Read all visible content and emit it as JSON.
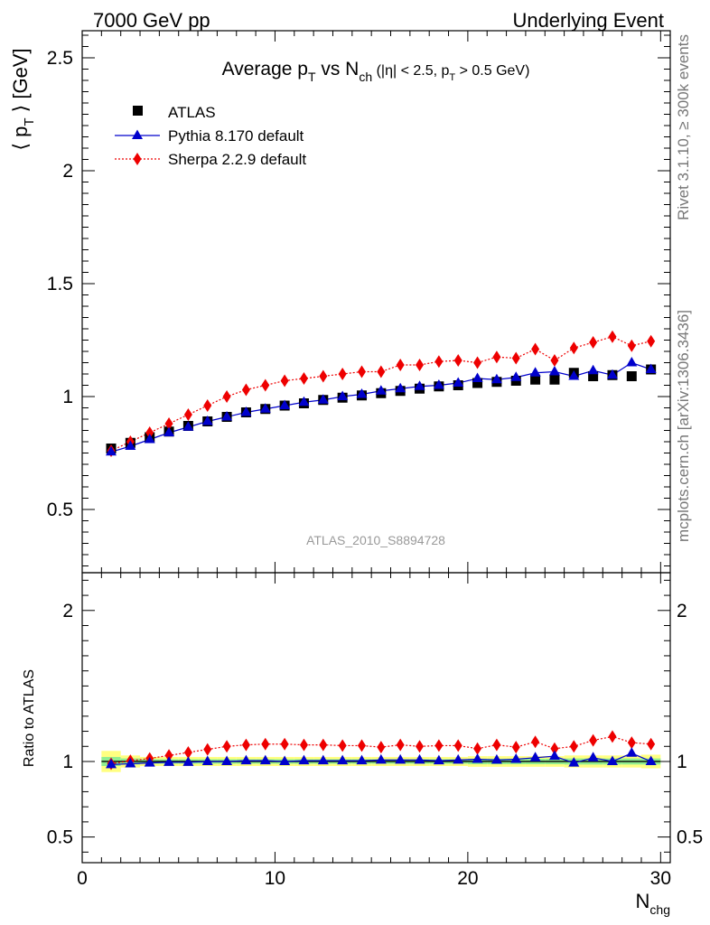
{
  "header": {
    "left": "7000 GeV pp",
    "right": "Underlying Event"
  },
  "side": {
    "rivet": "Rivet 3.1.10, ≥ 300k events",
    "mcplots": "mcplots.cern.ch [arXiv:1306.3436]"
  },
  "watermark": "ATLAS_2010_S8894728",
  "main_title": {
    "pre": "Average p",
    "pre_sub": "T",
    "mid": " vs N",
    "mid_sub": "ch",
    "cut_a": " (|η| < 2.5, p",
    "cut_sub": "T",
    "cut_b": " > 0.5 GeV)"
  },
  "ylabel_main": {
    "open": "⟨ p",
    "sub": "T",
    "close": " ⟩ [GeV]"
  },
  "ylabel_ratio": "Ratio to ATLAS",
  "xlabel": {
    "base": "N",
    "sub": "chg"
  },
  "legend": [
    {
      "label": "ATLAS",
      "color": "#000000",
      "marker": "square"
    },
    {
      "label": "Pythia 8.170 default",
      "color": "#0000cc",
      "marker": "triangle"
    },
    {
      "label": "Sherpa 2.2.9 default",
      "color": "#ee0000",
      "marker": "diamond"
    }
  ],
  "chart_data": {
    "type": "scatter",
    "x": [
      1.5,
      2.5,
      3.5,
      4.5,
      5.5,
      6.5,
      7.5,
      8.5,
      9.5,
      10.5,
      11.5,
      12.5,
      13.5,
      14.5,
      15.5,
      16.5,
      17.5,
      18.5,
      19.5,
      20.5,
      21.5,
      22.5,
      23.5,
      24.5,
      25.5,
      26.5,
      27.5,
      28.5,
      29.5
    ],
    "xlim": [
      0,
      30.5
    ],
    "xticks": [
      0,
      10,
      20,
      30
    ],
    "main": {
      "ylim": [
        0.22,
        2.62
      ],
      "yticks": [
        0.5,
        1,
        1.5,
        2,
        2.5
      ],
      "ytick_labels": [
        "0.5",
        "1",
        "1.5",
        "2",
        "2.5"
      ]
    },
    "ratio": {
      "ylim": [
        0.33,
        2.25
      ],
      "yticks": [
        0.5,
        1,
        2
      ],
      "ytick_labels": [
        "0.5",
        "1",
        "2"
      ],
      "band_inner": [
        0.03,
        0.02,
        0.015,
        0.015,
        0.015,
        0.015,
        0.015,
        0.015,
        0.015,
        0.015,
        0.015,
        0.015,
        0.015,
        0.015,
        0.015,
        0.015,
        0.015,
        0.015,
        0.015,
        0.018,
        0.018,
        0.018,
        0.018,
        0.018,
        0.02,
        0.02,
        0.02,
        0.02,
        0.02
      ],
      "band_outer": [
        0.07,
        0.04,
        0.03,
        0.03,
        0.03,
        0.03,
        0.03,
        0.03,
        0.03,
        0.03,
        0.03,
        0.03,
        0.03,
        0.03,
        0.03,
        0.03,
        0.03,
        0.03,
        0.03,
        0.035,
        0.035,
        0.035,
        0.035,
        0.035,
        0.04,
        0.04,
        0.04,
        0.04,
        0.045
      ]
    },
    "series": [
      {
        "name": "ATLAS",
        "color": "#000000",
        "marker": "square",
        "values": [
          0.77,
          0.795,
          0.82,
          0.845,
          0.87,
          0.89,
          0.91,
          0.93,
          0.945,
          0.96,
          0.97,
          0.985,
          0.995,
          1.005,
          1.015,
          1.025,
          1.035,
          1.045,
          1.05,
          1.06,
          1.065,
          1.07,
          1.075,
          1.075,
          1.105,
          1.09,
          1.095,
          1.09,
          1.12
        ],
        "errors": [
          0.01,
          0.01,
          0.01,
          0.01,
          0.01,
          0.01,
          0.01,
          0.01,
          0.01,
          0.01,
          0.01,
          0.01,
          0.01,
          0.01,
          0.01,
          0.01,
          0.01,
          0.01,
          0.01,
          0.01,
          0.01,
          0.01,
          0.01,
          0.01,
          0.01,
          0.01,
          0.01,
          0.01,
          0.01
        ]
      },
      {
        "name": "Pythia 8.170 default",
        "color": "#0000cc",
        "marker": "triangle",
        "values": [
          0.755,
          0.78,
          0.81,
          0.84,
          0.865,
          0.89,
          0.91,
          0.93,
          0.945,
          0.96,
          0.975,
          0.985,
          1.0,
          1.01,
          1.025,
          1.035,
          1.045,
          1.05,
          1.06,
          1.08,
          1.075,
          1.085,
          1.105,
          1.11,
          1.09,
          1.115,
          1.095,
          1.15,
          1.12
        ],
        "errors": [
          0.005,
          0.005,
          0.005,
          0.005,
          0.005,
          0.005,
          0.005,
          0.005,
          0.005,
          0.005,
          0.005,
          0.005,
          0.005,
          0.005,
          0.006,
          0.006,
          0.006,
          0.006,
          0.007,
          0.007,
          0.008,
          0.008,
          0.009,
          0.01,
          0.01,
          0.011,
          0.012,
          0.013,
          0.014
        ],
        "ratio": [
          0.98,
          0.985,
          0.99,
          0.995,
          0.995,
          1.0,
          1.0,
          1.005,
          1.005,
          1.0,
          1.005,
          1.005,
          1.005,
          1.005,
          1.01,
          1.01,
          1.01,
          1.005,
          1.01,
          1.015,
          1.01,
          1.015,
          1.025,
          1.035,
          0.99,
          1.025,
          1.0,
          1.055,
          1.0
        ]
      },
      {
        "name": "Sherpa 2.2.9 default",
        "color": "#ee0000",
        "marker": "diamond",
        "values": [
          0.76,
          0.8,
          0.84,
          0.88,
          0.92,
          0.96,
          1.0,
          1.03,
          1.05,
          1.07,
          1.08,
          1.09,
          1.1,
          1.11,
          1.11,
          1.14,
          1.14,
          1.155,
          1.16,
          1.15,
          1.175,
          1.17,
          1.21,
          1.16,
          1.215,
          1.24,
          1.265,
          1.225,
          1.245
        ],
        "errors": [
          0.005,
          0.005,
          0.005,
          0.005,
          0.005,
          0.005,
          0.006,
          0.006,
          0.006,
          0.007,
          0.007,
          0.008,
          0.008,
          0.009,
          0.009,
          0.01,
          0.01,
          0.011,
          0.012,
          0.012,
          0.013,
          0.014,
          0.015,
          0.016,
          0.017,
          0.018,
          0.019,
          0.02,
          0.022
        ],
        "ratio": [
          0.985,
          1.005,
          1.02,
          1.04,
          1.06,
          1.08,
          1.1,
          1.11,
          1.115,
          1.115,
          1.11,
          1.11,
          1.105,
          1.105,
          1.095,
          1.11,
          1.1,
          1.105,
          1.105,
          1.085,
          1.11,
          1.095,
          1.13,
          1.085,
          1.1,
          1.14,
          1.165,
          1.125,
          1.115
        ]
      }
    ]
  }
}
